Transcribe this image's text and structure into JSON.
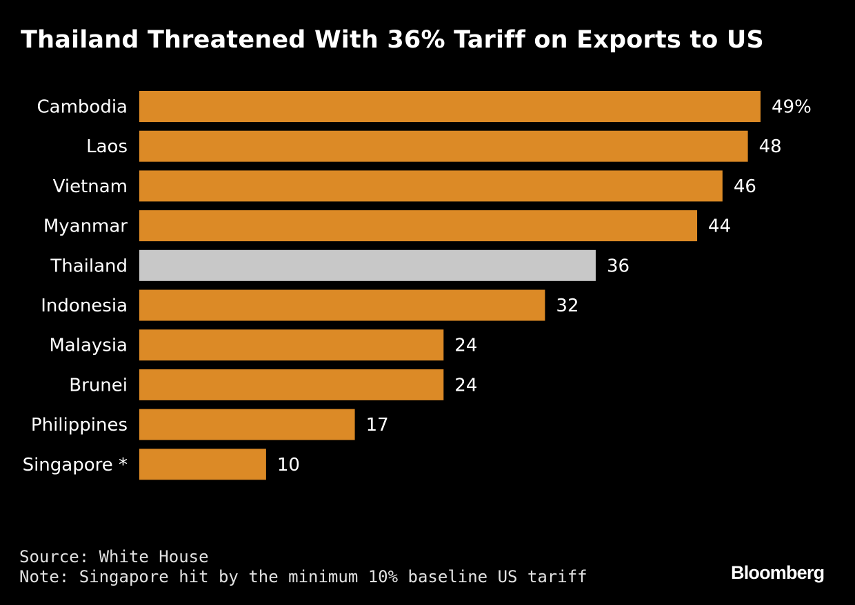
{
  "chart_data": {
    "type": "bar",
    "orientation": "horizontal",
    "title": "Thailand Threatened With 36% Tariff on Exports to US",
    "categories": [
      "Cambodia",
      "Laos",
      "Vietnam",
      "Myanmar",
      "Thailand",
      "Indonesia",
      "Malaysia",
      "Brunei",
      "Philippines",
      "Singapore"
    ],
    "values": [
      49,
      48,
      46,
      44,
      36,
      32,
      24,
      24,
      17,
      10
    ],
    "value_labels": [
      "49%",
      "48",
      "46",
      "44",
      "36",
      "32",
      "24",
      "24",
      "17",
      "10"
    ],
    "category_markers": [
      "",
      "",
      "",
      "",
      "",
      "",
      "",
      "",
      "",
      "*"
    ],
    "highlight_category": "Thailand",
    "xlim": [
      0,
      49
    ],
    "grid": false,
    "legend": "none",
    "colors": {
      "bar": "#DC8A26",
      "highlight": "#C8C8C8",
      "background": "#000000",
      "text": "#FFFFFF"
    }
  },
  "footer": {
    "source": "Source: White House",
    "note": "Note: Singapore hit by the minimum 10% baseline US tariff"
  },
  "brand": {
    "logo_text": "Bloomberg"
  }
}
